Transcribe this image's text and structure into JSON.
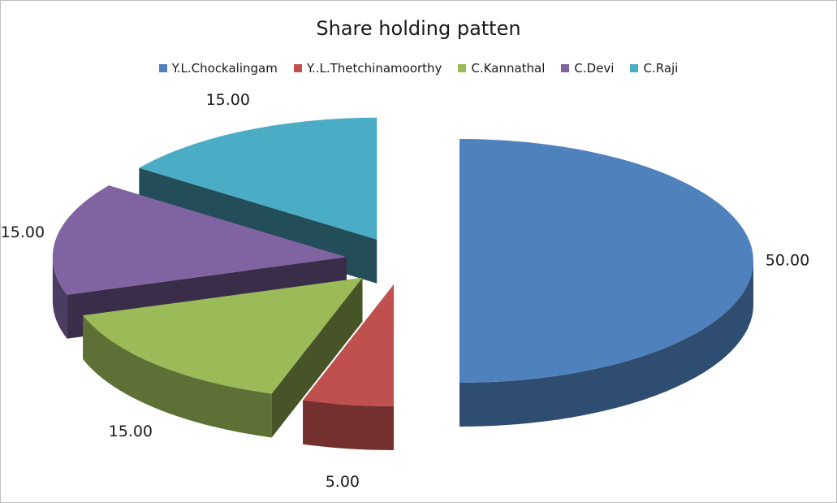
{
  "chart_data": {
    "type": "pie",
    "title": "Share holding patten",
    "legend_position": "top",
    "style": "3d-exploded",
    "slices": [
      {
        "name": "Y.L.Chockalingam",
        "value": 50,
        "label": "50.00",
        "color": "#4F81BD"
      },
      {
        "name": "Y..L.Thetchinamoorthy",
        "value": 5,
        "label": "5.00",
        "color": "#C0504D"
      },
      {
        "name": "C.Kannathal",
        "value": 15,
        "label": "15.00",
        "color": "#9BBB59"
      },
      {
        "name": "C.Devi",
        "value": 15,
        "label": "15.00",
        "color": "#8064A2"
      },
      {
        "name": "C.Raji",
        "value": 15,
        "label": "15.00",
        "color": "#4BACC6"
      }
    ]
  }
}
